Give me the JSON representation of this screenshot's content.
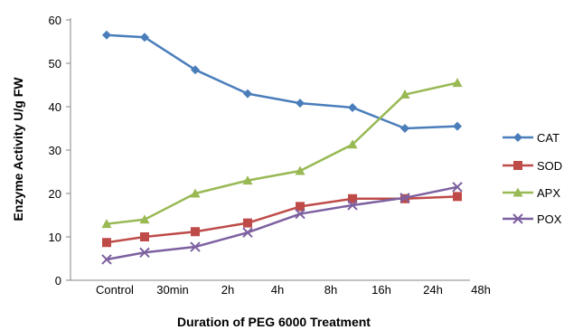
{
  "chart_data": {
    "type": "line",
    "title": "",
    "xlabel": "Duration of PEG 6000 Treatment",
    "ylabel": "Enzyme Activity U/g FW",
    "categories": [
      "Control",
      "30min",
      "2h",
      "4h",
      "8h",
      "16h",
      "24h",
      "48h"
    ],
    "ylim": [
      0,
      60
    ],
    "yticks": [
      0,
      10,
      20,
      30,
      40,
      50,
      60
    ],
    "grid": false,
    "legend_position": "right",
    "series": [
      {
        "name": "CAT",
        "color": "#4a7ebb",
        "marker": "diamond",
        "values": [
          56.5,
          56,
          48.5,
          43,
          40.8,
          39.8,
          35,
          35.5
        ]
      },
      {
        "name": "SOD",
        "color": "#be4b48",
        "marker": "square",
        "values": [
          8.7,
          10,
          11.2,
          13.2,
          17,
          18.8,
          18.8,
          19.3
        ]
      },
      {
        "name": "APX",
        "color": "#98b954",
        "marker": "triangle",
        "values": [
          13,
          14,
          20,
          23,
          25.2,
          31.3,
          42.8,
          45.5
        ]
      },
      {
        "name": "POX",
        "color": "#7d60a0",
        "marker": "x",
        "values": [
          4.8,
          6.4,
          7.7,
          11,
          15.3,
          17.3,
          19,
          21.5
        ]
      }
    ]
  }
}
